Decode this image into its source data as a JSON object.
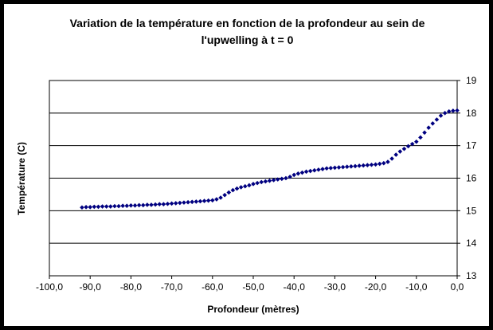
{
  "chart_data": {
    "type": "scatter",
    "title_line1": "Variation de la température en fonction de la profondeur au sein de",
    "title_line2": "l'upwelling à t = 0",
    "xlabel": "Profondeur (mètres)",
    "ylabel": "Température (C)",
    "xlim": [
      -100,
      0
    ],
    "ylim": [
      13,
      19
    ],
    "x_ticks": [
      -100,
      -90,
      -80,
      -70,
      -60,
      -50,
      -40,
      -30,
      -20,
      -10,
      0
    ],
    "x_tick_labels": [
      "-100,0",
      "-90,0",
      "-80,0",
      "-70,0",
      "-60,0",
      "-50,0",
      "-40,0",
      "-30,0",
      "-20,0",
      "-10,0",
      "0,0"
    ],
    "y_ticks": [
      13,
      14,
      15,
      16,
      17,
      18,
      19
    ],
    "y_tick_labels": [
      "13",
      "14",
      "15",
      "16",
      "17",
      "18",
      "19"
    ],
    "y_axis_side": "right",
    "grid": "horizontal",
    "legend": "none",
    "marker": "diamond",
    "series_color": "#000080",
    "x": [
      -92,
      -91,
      -90,
      -89,
      -88,
      -87,
      -86,
      -85,
      -84,
      -83,
      -82,
      -81,
      -80,
      -79,
      -78,
      -77,
      -76,
      -75,
      -74,
      -73,
      -72,
      -71,
      -70,
      -69,
      -68,
      -67,
      -66,
      -65,
      -64,
      -63,
      -62,
      -61,
      -60,
      -59,
      -58,
      -57,
      -56,
      -55,
      -54,
      -53,
      -52,
      -51,
      -50,
      -49,
      -48,
      -47,
      -46,
      -45,
      -44,
      -43,
      -42,
      -41,
      -40,
      -39,
      -38,
      -37,
      -36,
      -35,
      -34,
      -33,
      -32,
      -31,
      -30,
      -29,
      -28,
      -27,
      -26,
      -25,
      -24,
      -23,
      -22,
      -21,
      -20,
      -19,
      -18,
      -17,
      -16,
      -15,
      -14,
      -13,
      -12,
      -11,
      -10,
      -9,
      -8,
      -7,
      -6,
      -5,
      -4,
      -3,
      -2,
      -1,
      0
    ],
    "y": [
      15.1,
      15.11,
      15.11,
      15.12,
      15.12,
      15.13,
      15.13,
      15.13,
      15.14,
      15.14,
      15.15,
      15.15,
      15.16,
      15.16,
      15.17,
      15.17,
      15.18,
      15.18,
      15.19,
      15.2,
      15.2,
      15.21,
      15.22,
      15.23,
      15.24,
      15.25,
      15.26,
      15.27,
      15.28,
      15.29,
      15.3,
      15.31,
      15.32,
      15.35,
      15.4,
      15.48,
      15.56,
      15.63,
      15.68,
      15.72,
      15.75,
      15.78,
      15.82,
      15.85,
      15.88,
      15.9,
      15.92,
      15.94,
      15.96,
      15.98,
      16.0,
      16.04,
      16.1,
      16.14,
      16.17,
      16.2,
      16.22,
      16.24,
      16.26,
      16.28,
      16.3,
      16.31,
      16.32,
      16.33,
      16.34,
      16.35,
      16.36,
      16.37,
      16.38,
      16.39,
      16.4,
      16.41,
      16.42,
      16.44,
      16.46,
      16.5,
      16.6,
      16.72,
      16.82,
      16.9,
      16.98,
      17.05,
      17.12,
      17.25,
      17.4,
      17.55,
      17.68,
      17.8,
      17.92,
      18.0,
      18.05,
      18.07,
      18.08
    ]
  }
}
